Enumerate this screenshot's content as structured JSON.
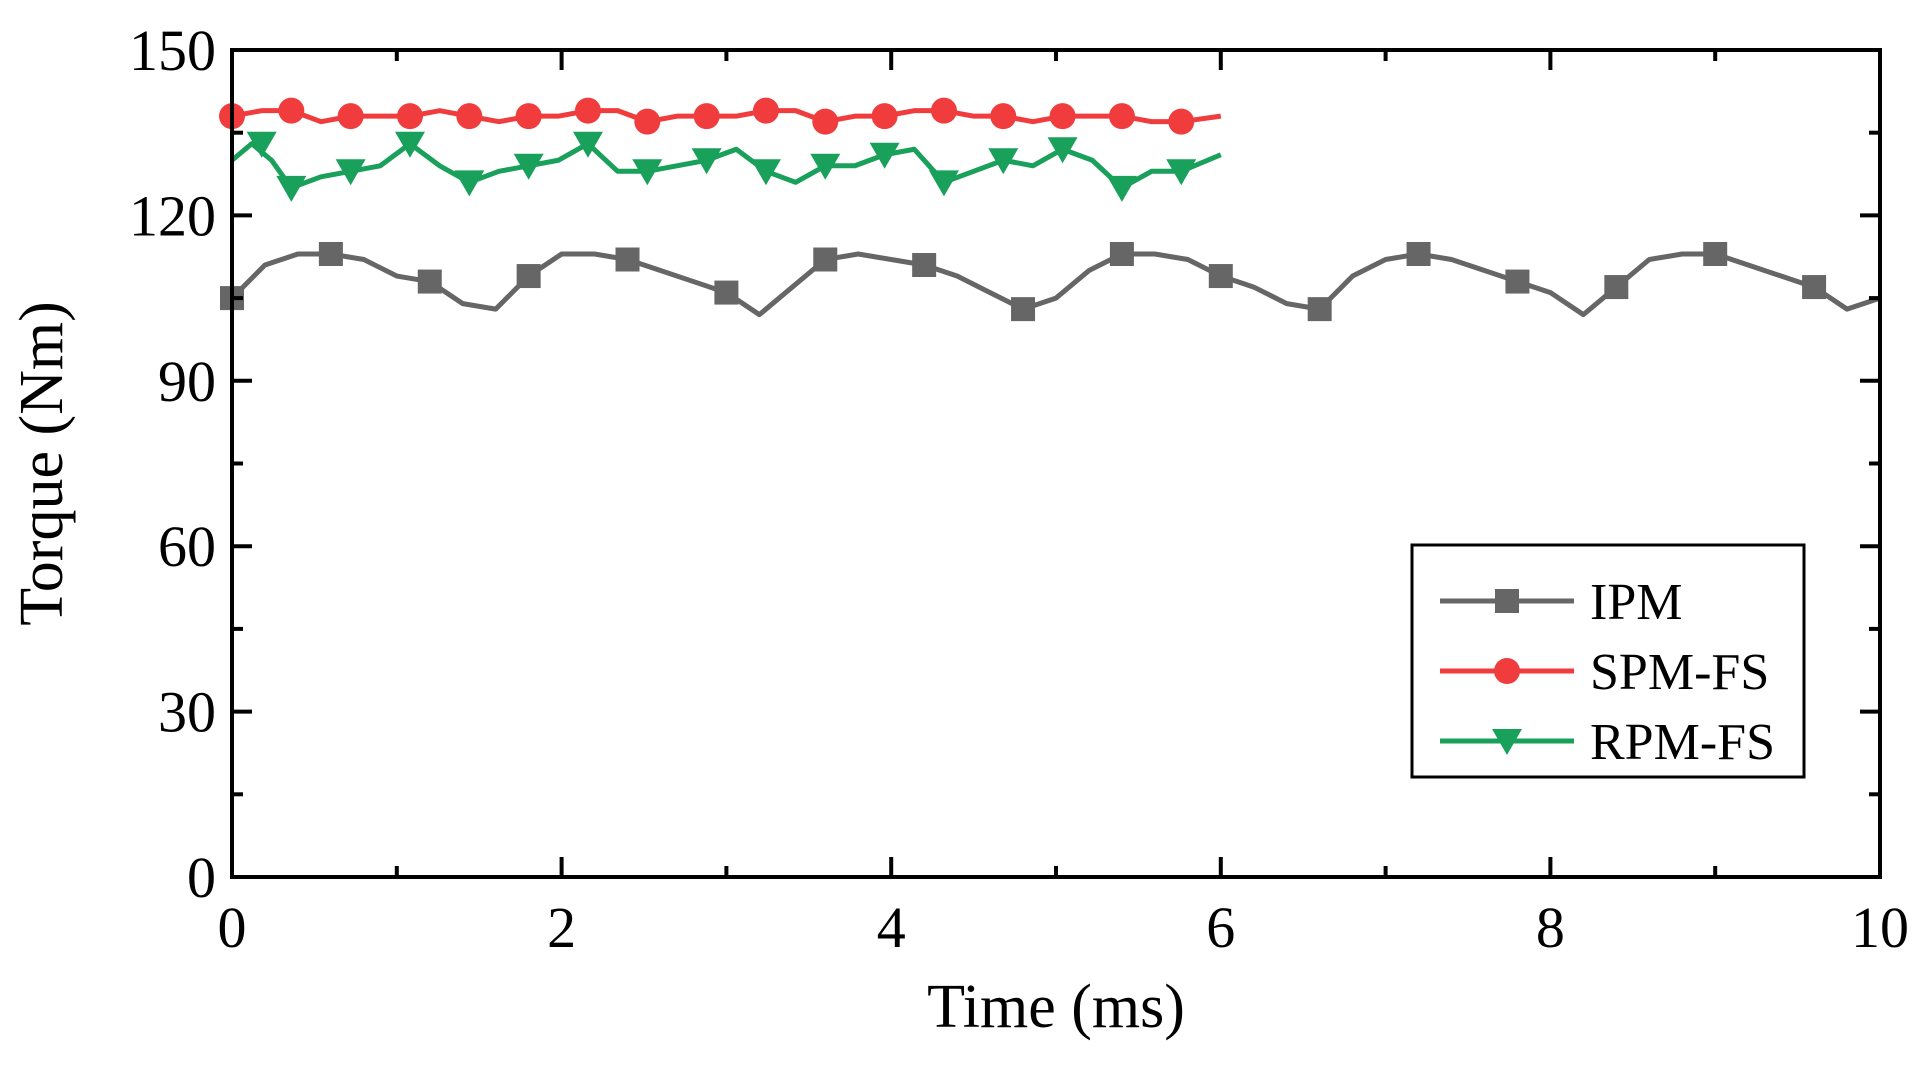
{
  "chart_data": {
    "type": "line",
    "title": "",
    "xlabel": "Time (ms)",
    "ylabel": "Torque (Nm)",
    "xlim": [
      0,
      10
    ],
    "ylim": [
      0,
      150
    ],
    "xticks": [
      0,
      2,
      4,
      6,
      8,
      10
    ],
    "yticks": [
      0,
      30,
      60,
      90,
      120,
      150
    ],
    "legend_position": "lower-right",
    "series": [
      {
        "name": "IPM",
        "color": "#666666",
        "marker": "square",
        "x": [
          0,
          0.2,
          0.4,
          0.6,
          0.8,
          1.0,
          1.2,
          1.4,
          1.6,
          1.8,
          2.0,
          2.2,
          2.4,
          2.6,
          2.8,
          3.0,
          3.2,
          3.4,
          3.6,
          3.8,
          4.0,
          4.2,
          4.4,
          4.6,
          4.8,
          5.0,
          5.2,
          5.4,
          5.6,
          5.8,
          6.0,
          6.2,
          6.4,
          6.6,
          6.8,
          7.0,
          7.2,
          7.4,
          7.6,
          7.8,
          8.0,
          8.2,
          8.4,
          8.6,
          8.8,
          9.0,
          9.2,
          9.4,
          9.6,
          9.8,
          10.0
        ],
        "y": [
          105,
          111,
          113,
          113,
          112,
          109,
          108,
          104,
          103,
          109,
          113,
          113,
          112,
          110,
          108,
          106,
          102,
          107,
          112,
          113,
          112,
          111,
          109,
          106,
          103,
          105,
          110,
          113,
          113,
          112,
          109,
          107,
          104,
          103,
          109,
          112,
          113,
          112,
          110,
          108,
          106,
          102,
          107,
          112,
          113,
          113,
          111,
          109,
          107,
          103,
          105
        ],
        "markers_x": [
          0,
          0.6,
          1.2,
          1.8,
          2.4,
          3.0,
          3.6,
          4.2,
          4.8,
          5.4,
          6.0,
          6.6,
          7.2,
          7.8,
          8.4,
          9.0,
          9.6
        ],
        "markers_y": [
          105,
          113,
          108,
          109,
          112,
          106,
          112,
          111,
          103,
          113,
          109,
          103,
          113,
          108,
          107,
          113,
          107
        ]
      },
      {
        "name": "SPM-FS",
        "color": "#f03c3c",
        "marker": "circle",
        "x": [
          0,
          0.18,
          0.36,
          0.54,
          0.72,
          0.9,
          1.08,
          1.26,
          1.44,
          1.62,
          1.8,
          1.98,
          2.16,
          2.34,
          2.52,
          2.7,
          2.88,
          3.06,
          3.24,
          3.42,
          3.6,
          3.78,
          3.96,
          4.14,
          4.32,
          4.5,
          4.68,
          4.86,
          5.04,
          5.22,
          5.4,
          5.58,
          5.76,
          6.0
        ],
        "y": [
          138,
          139,
          139,
          137,
          138,
          138,
          138,
          139,
          138,
          137,
          138,
          138,
          139,
          139,
          137,
          138,
          138,
          138,
          139,
          139,
          137,
          138,
          138,
          139,
          139,
          138,
          138,
          137,
          138,
          138,
          138,
          137,
          137,
          138
        ],
        "markers_x": [
          0,
          0.36,
          0.72,
          1.08,
          1.44,
          1.8,
          2.16,
          2.52,
          2.88,
          3.24,
          3.6,
          3.96,
          4.32,
          4.68,
          5.04,
          5.4,
          5.76
        ],
        "markers_y": [
          138,
          139,
          138,
          138,
          138,
          138,
          139,
          137,
          138,
          139,
          137,
          138,
          139,
          138,
          138,
          138,
          137
        ]
      },
      {
        "name": "RPM-FS",
        "color": "#19a05a",
        "marker": "triangle-down",
        "x": [
          0,
          0.12,
          0.24,
          0.36,
          0.54,
          0.72,
          0.9,
          1.08,
          1.26,
          1.44,
          1.62,
          1.8,
          1.98,
          2.16,
          2.34,
          2.52,
          2.7,
          2.88,
          3.06,
          3.24,
          3.42,
          3.6,
          3.78,
          3.96,
          4.14,
          4.32,
          4.5,
          4.68,
          4.86,
          5.04,
          5.22,
          5.4,
          5.58,
          5.76,
          6.0
        ],
        "y": [
          130,
          133,
          130,
          125,
          127,
          128,
          129,
          133,
          129,
          126,
          128,
          129,
          130,
          133,
          128,
          128,
          129,
          130,
          132,
          128,
          126,
          129,
          129,
          131,
          132,
          126,
          128,
          130,
          129,
          132,
          130,
          125,
          128,
          128,
          131
        ],
        "markers_x": [
          0.18,
          0.36,
          0.72,
          1.08,
          1.44,
          1.8,
          2.16,
          2.52,
          2.88,
          3.24,
          3.6,
          3.96,
          4.32,
          4.68,
          5.04,
          5.4,
          5.76
        ],
        "markers_y": [
          133,
          125,
          128,
          133,
          126,
          129,
          133,
          128,
          130,
          128,
          129,
          131,
          126,
          130,
          132,
          125,
          128
        ]
      }
    ]
  }
}
